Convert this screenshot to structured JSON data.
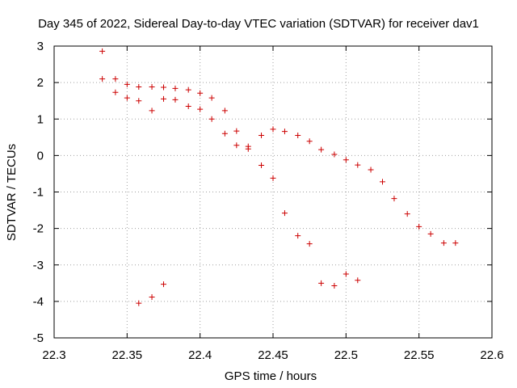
{
  "chart_data": {
    "type": "scatter",
    "title": "Day 345 of 2022, Sidereal Day-to-day VTEC variation (SDTVAR) for receiver dav1",
    "xlabel": "GPS time / hours",
    "ylabel": "SDTVAR / TECUs",
    "xlim": [
      22.3,
      22.6
    ],
    "ylim": [
      -5,
      3
    ],
    "xticks": [
      22.3,
      22.35,
      22.4,
      22.45,
      22.5,
      22.55,
      22.6
    ],
    "xtick_labels": [
      "22.3",
      "22.35",
      "22.4",
      "22.45",
      "22.5",
      "22.55",
      "22.6"
    ],
    "yticks": [
      -5,
      -4,
      -3,
      -2,
      -1,
      0,
      1,
      2,
      3
    ],
    "ytick_labels": [
      "-5",
      "-4",
      "-3",
      "-2",
      "-1",
      "0",
      "1",
      "2",
      "3"
    ],
    "grid": true,
    "marker": "+",
    "series_color": "#cc0000",
    "points": [
      [
        22.333,
        2.86
      ],
      [
        22.333,
        2.1
      ],
      [
        22.342,
        2.1
      ],
      [
        22.342,
        1.73
      ],
      [
        22.35,
        1.95
      ],
      [
        22.35,
        1.58
      ],
      [
        22.358,
        1.88
      ],
      [
        22.358,
        1.5
      ],
      [
        22.358,
        -4.05
      ],
      [
        22.367,
        1.88
      ],
      [
        22.367,
        1.23
      ],
      [
        22.367,
        -3.88
      ],
      [
        22.375,
        1.87
      ],
      [
        22.375,
        1.55
      ],
      [
        22.375,
        -3.53
      ],
      [
        22.383,
        1.84
      ],
      [
        22.383,
        1.53
      ],
      [
        22.392,
        1.8
      ],
      [
        22.392,
        1.35
      ],
      [
        22.4,
        1.71
      ],
      [
        22.4,
        1.27
      ],
      [
        22.408,
        1.58
      ],
      [
        22.408,
        1.0
      ],
      [
        22.417,
        1.23
      ],
      [
        22.417,
        0.6
      ],
      [
        22.425,
        0.67
      ],
      [
        22.425,
        0.28
      ],
      [
        22.433,
        0.25
      ],
      [
        22.433,
        0.18
      ],
      [
        22.442,
        0.55
      ],
      [
        22.442,
        -0.27
      ],
      [
        22.45,
        0.72
      ],
      [
        22.45,
        -0.62
      ],
      [
        22.458,
        0.66
      ],
      [
        22.458,
        -1.58
      ],
      [
        22.467,
        0.55
      ],
      [
        22.467,
        -2.2
      ],
      [
        22.475,
        0.39
      ],
      [
        22.475,
        -2.42
      ],
      [
        22.483,
        0.16
      ],
      [
        22.483,
        -3.5
      ],
      [
        22.492,
        0.03
      ],
      [
        22.492,
        -3.57
      ],
      [
        22.5,
        -0.12
      ],
      [
        22.5,
        -3.25
      ],
      [
        22.508,
        -0.26
      ],
      [
        22.508,
        -3.42
      ],
      [
        22.517,
        -0.39
      ],
      [
        22.525,
        -0.72
      ],
      [
        22.533,
        -1.18
      ],
      [
        22.542,
        -1.6
      ],
      [
        22.55,
        -1.95
      ],
      [
        22.558,
        -2.15
      ],
      [
        22.567,
        -2.4
      ],
      [
        22.575,
        -2.4
      ]
    ]
  }
}
